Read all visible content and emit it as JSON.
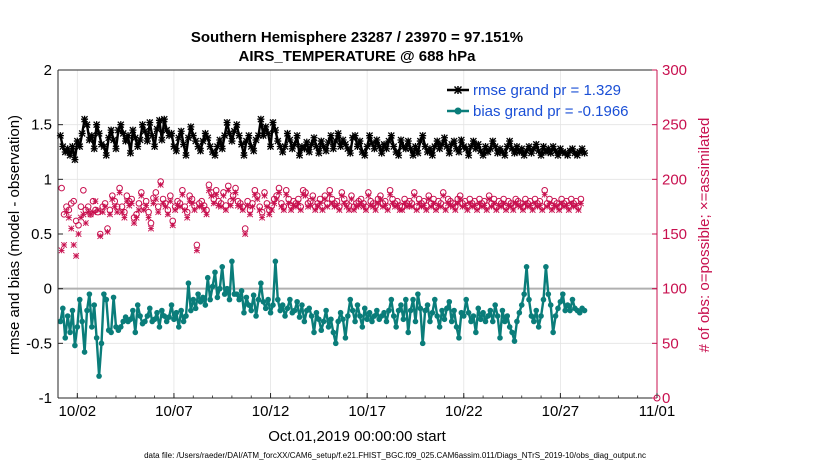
{
  "chart_data": {
    "type": "line",
    "title": "Southern Hemisphere 23287 / 23970 = 97.151%",
    "subtitle": "AIRS_TEMPERATURE @ 688 hPa",
    "xlabel": "Oct.01,2019 00:00:00 start",
    "ylabel_left": "rmse and bias (model - observation)",
    "ylabel_right": "# of obs: o=possible; ×=assimilated",
    "footer": "data file: /Users/raeder/DAI/ATM_forcXX/CAM6_setup/f.e21.FHIST_BGC.f09_025.CAM6assim.011/Diags_NTrS_2019-10/obs_diag_output.nc",
    "xlim": [
      0,
      31
    ],
    "x_ticks": [
      1,
      6,
      11,
      16,
      21,
      26,
      31
    ],
    "x_tick_labels": [
      "10/02",
      "10/07",
      "10/12",
      "10/17",
      "10/22",
      "10/27",
      "11/01"
    ],
    "ylim_left": [
      -1,
      2
    ],
    "y_ticks_left": [
      -1,
      -0.5,
      0,
      0.5,
      1,
      1.5,
      2
    ],
    "y_tick_labels_left": [
      "-1",
      "-0.5",
      "0",
      "0.5",
      "1",
      "1.5",
      "2"
    ],
    "ylim_right": [
      0,
      300
    ],
    "y_ticks_right": [
      0,
      50,
      100,
      150,
      200,
      250,
      300
    ],
    "y_tick_labels_right": [
      "0",
      "50",
      "100",
      "150",
      "200",
      "250",
      "300"
    ],
    "legend_position": "top-right",
    "colors": {
      "rmse": "#000000",
      "bias": "#0a7d7a",
      "obs": "#c8104f",
      "legend_text": "#1a4fd6",
      "zero_line": "#b0b0b0"
    },
    "series": [
      {
        "name": "rmse grand pr = 1.329",
        "key": "rmse",
        "values": [
          1.4,
          1.3,
          1.25,
          1.28,
          1.22,
          1.3,
          1.18,
          1.35,
          1.3,
          1.42,
          1.55,
          1.5,
          1.36,
          1.4,
          1.28,
          1.5,
          1.42,
          1.32,
          1.3,
          1.22,
          1.38,
          1.45,
          1.36,
          1.28,
          1.45,
          1.5,
          1.42,
          1.35,
          1.4,
          1.24,
          1.45,
          1.38,
          1.3,
          1.36,
          1.5,
          1.44,
          1.35,
          1.52,
          1.4,
          1.3,
          1.46,
          1.54,
          1.36,
          1.55,
          1.45,
          1.4,
          1.42,
          1.3,
          1.26,
          1.38,
          1.44,
          1.32,
          1.22,
          1.38,
          1.48,
          1.4,
          1.35,
          1.3,
          1.26,
          1.35,
          1.42,
          1.38,
          1.3,
          1.25,
          1.22,
          1.3,
          1.36,
          1.28,
          1.4,
          1.52,
          1.42,
          1.35,
          1.44,
          1.5,
          1.4,
          1.32,
          1.22,
          1.35,
          1.4,
          1.3,
          1.26,
          1.36,
          1.4,
          1.55,
          1.4,
          1.48,
          1.42,
          1.3,
          1.52,
          1.45,
          1.35,
          1.3,
          1.25,
          1.3,
          1.42,
          1.36,
          1.28,
          1.32,
          1.4,
          1.22,
          1.3,
          1.28,
          1.34,
          1.25,
          1.32,
          1.38,
          1.3,
          1.24,
          1.35,
          1.3,
          1.26,
          1.34,
          1.4,
          1.28,
          1.35,
          1.42,
          1.3,
          1.36,
          1.32,
          1.28,
          1.24,
          1.38,
          1.4,
          1.3,
          1.35,
          1.25,
          1.22,
          1.3,
          1.4,
          1.33,
          1.28,
          1.36,
          1.3,
          1.24,
          1.32,
          1.28,
          1.35,
          1.4,
          1.3,
          1.25,
          1.22,
          1.36,
          1.3,
          1.28,
          1.35,
          1.28,
          1.22,
          1.3,
          1.24,
          1.35,
          1.4,
          1.3,
          1.25,
          1.28,
          1.22,
          1.3,
          1.35,
          1.28,
          1.32,
          1.38,
          1.3,
          1.24,
          1.32,
          1.35,
          1.28,
          1.25,
          1.36,
          1.3,
          1.28,
          1.22,
          1.3,
          1.35,
          1.28,
          1.32,
          1.26,
          1.22,
          1.3,
          1.25,
          1.28,
          1.35,
          1.3,
          1.24,
          1.28,
          1.25,
          1.22,
          1.3,
          1.35,
          1.28,
          1.24,
          1.3,
          1.25,
          1.28,
          1.22,
          1.26,
          1.3,
          1.24,
          1.28,
          1.32,
          1.26,
          1.22,
          1.3,
          1.25,
          1.28,
          1.24,
          1.3,
          1.26,
          1.22,
          1.28,
          1.25,
          1.24,
          1.22,
          1.26,
          1.28,
          1.24,
          1.22,
          1.25,
          1.28,
          1.24
        ]
      },
      {
        "name": "bias grand pr = -0.1966",
        "key": "bias",
        "values": [
          -0.3,
          -0.18,
          -0.45,
          -0.25,
          -0.4,
          -0.2,
          -0.52,
          -0.35,
          -0.1,
          -0.3,
          -0.58,
          -0.2,
          -0.05,
          -0.35,
          -0.15,
          -0.45,
          -0.8,
          -0.5,
          -0.05,
          -0.1,
          -0.38,
          -0.4,
          -0.08,
          -0.35,
          -0.38,
          -0.35,
          -0.3,
          -0.26,
          -0.3,
          -0.28,
          -0.2,
          -0.4,
          -0.15,
          -0.25,
          -0.32,
          -0.3,
          -0.25,
          -0.18,
          -0.3,
          -0.28,
          -0.22,
          -0.35,
          -0.2,
          -0.25,
          -0.3,
          -0.26,
          -0.15,
          -0.28,
          -0.22,
          -0.35,
          -0.2,
          -0.3,
          -0.25,
          0.05,
          -0.2,
          -0.1,
          -0.18,
          -0.05,
          -0.12,
          -0.08,
          -0.15,
          0.1,
          -0.1,
          0.02,
          0.15,
          -0.08,
          0.0,
          0.2,
          -0.05,
          0.0,
          -0.1,
          0.25,
          -0.05,
          -0.05,
          -0.1,
          -0.02,
          -0.22,
          -0.08,
          -0.15,
          -0.2,
          -0.06,
          -0.25,
          -0.1,
          0.05,
          -0.12,
          -0.18,
          -0.1,
          -0.22,
          -0.15,
          0.25,
          -0.1,
          -0.2,
          -0.15,
          -0.25,
          -0.18,
          -0.1,
          -0.22,
          -0.2,
          -0.12,
          -0.26,
          -0.15,
          -0.3,
          -0.2,
          -0.18,
          -0.25,
          -0.4,
          -0.22,
          -0.28,
          -0.38,
          -0.3,
          -0.2,
          -0.35,
          -0.28,
          -0.4,
          -0.5,
          -0.3,
          -0.22,
          -0.28,
          -0.45,
          -0.25,
          -0.1,
          -0.2,
          -0.3,
          -0.15,
          -0.25,
          -0.35,
          -0.18,
          -0.28,
          -0.22,
          -0.3,
          -0.25,
          -0.2,
          -0.28,
          -0.25,
          -0.22,
          -0.3,
          -0.2,
          -0.1,
          -0.25,
          -0.35,
          -0.2,
          -0.15,
          -0.28,
          -0.1,
          -0.4,
          -0.2,
          -0.1,
          -0.3,
          -0.05,
          -0.18,
          -0.5,
          -0.2,
          -0.15,
          -0.3,
          -0.22,
          -0.1,
          -0.25,
          -0.35,
          -0.2,
          -0.28,
          -0.18,
          -0.12,
          -0.3,
          -0.2,
          -0.35,
          -0.45,
          -0.22,
          -0.25,
          -0.1,
          -0.22,
          -0.3,
          -0.25,
          -0.4,
          -0.18,
          -0.28,
          -0.22,
          -0.3,
          -0.25,
          -0.2,
          -0.3,
          -0.15,
          -0.25,
          -0.45,
          -0.2,
          -0.3,
          -0.25,
          -0.35,
          -0.4,
          -0.48,
          -0.3,
          -0.22,
          -0.15,
          -0.05,
          0.2,
          -0.1,
          -0.25,
          -0.3,
          -0.2,
          -0.35,
          -0.25,
          -0.1,
          0.2,
          -0.05,
          -0.15,
          -0.4,
          -0.25,
          -0.18,
          -0.12,
          -0.05,
          -0.2,
          -0.15,
          -0.2,
          -0.1,
          -0.18,
          -0.2,
          -0.22,
          -0.18,
          -0.2
        ]
      },
      {
        "name": "possible",
        "key": "possible",
        "marker": "o",
        "values": [
          192,
          168,
          175,
          172,
          178,
          180,
          162,
          158,
          175,
          190,
          172,
          175,
          168,
          180,
          172,
          170,
          150,
          175,
          178,
          155,
          172,
          185,
          180,
          175,
          192,
          175,
          170,
          185,
          180,
          182,
          165,
          168,
          178,
          188,
          175,
          180,
          170,
          160,
          183,
          188,
          175,
          198,
          182,
          178,
          172,
          185,
          162,
          175,
          180,
          178,
          190,
          175,
          170,
          185,
          182,
          176,
          140,
          178,
          180,
          176,
          172,
          195,
          188,
          182,
          190,
          180,
          178,
          188,
          176,
          194,
          180,
          185,
          192,
          180,
          178,
          175,
          155,
          180,
          172,
          178,
          190,
          185,
          175,
          170,
          188,
          178,
          172,
          176,
          182,
          185,
          192,
          178,
          175,
          190,
          182,
          176,
          180,
          178,
          182,
          175,
          190,
          188,
          178,
          180,
          185,
          175,
          178,
          182,
          176,
          185,
          178,
          190,
          182,
          178,
          180,
          175,
          188,
          182,
          178,
          176,
          185,
          175,
          178,
          180,
          182,
          178,
          175,
          188,
          180,
          178,
          176,
          182,
          185,
          178,
          180,
          175,
          190,
          182,
          178,
          180,
          176,
          175,
          182,
          178,
          180,
          178,
          188,
          175,
          182,
          178,
          180,
          176,
          185,
          178,
          182,
          175,
          180,
          178,
          188,
          176,
          182,
          180,
          178,
          175,
          182,
          185,
          178,
          180,
          176,
          182,
          178,
          180,
          175,
          182,
          178,
          180,
          176,
          185,
          178,
          182,
          175,
          180,
          178,
          182,
          175,
          180,
          178,
          176,
          182,
          180,
          178,
          175,
          182,
          178,
          180,
          176,
          182,
          178,
          180,
          175,
          190,
          178,
          182,
          176,
          180,
          178,
          175,
          182,
          178,
          180,
          176,
          182,
          178,
          180,
          175,
          182
        ]
      },
      {
        "name": "assimilated",
        "key": "assimilated",
        "marker": "×",
        "values": [
          135,
          140,
          170,
          165,
          155,
          140,
          130,
          150,
          165,
          168,
          160,
          170,
          168,
          170,
          180,
          172,
          148,
          170,
          175,
          152,
          168,
          182,
          175,
          170,
          188,
          170,
          165,
          180,
          176,
          178,
          160,
          165,
          172,
          185,
          172,
          176,
          165,
          155,
          178,
          182,
          170,
          195,
          178,
          175,
          168,
          180,
          158,
          172,
          176,
          175,
          186,
          172,
          165,
          180,
          178,
          172,
          135,
          175,
          176,
          172,
          168,
          190,
          185,
          178,
          186,
          176,
          175,
          185,
          172,
          190,
          176,
          182,
          188,
          176,
          175,
          172,
          150,
          176,
          168,
          175,
          186,
          182,
          172,
          165,
          185,
          175,
          168,
          172,
          178,
          182,
          188,
          175,
          172,
          186,
          178,
          172,
          176,
          175,
          178,
          172,
          186,
          185,
          175,
          176,
          182,
          172,
          175,
          178,
          172,
          182,
          175,
          186,
          178,
          175,
          176,
          172,
          185,
          178,
          175,
          172,
          182,
          172,
          175,
          176,
          178,
          175,
          172,
          185,
          176,
          175,
          172,
          178,
          182,
          175,
          176,
          172,
          186,
          178,
          175,
          176,
          172,
          172,
          178,
          175,
          176,
          175,
          185,
          172,
          178,
          175,
          176,
          172,
          182,
          175,
          178,
          172,
          176,
          175,
          185,
          172,
          178,
          176,
          175,
          172,
          178,
          182,
          175,
          176,
          172,
          178,
          175,
          176,
          172,
          178,
          175,
          176,
          172,
          182,
          175,
          178,
          172,
          176,
          175,
          178,
          172,
          176,
          175,
          172,
          178,
          176,
          175,
          172,
          178,
          175,
          176,
          172,
          178,
          175,
          176,
          172,
          186,
          175,
          178,
          172,
          176,
          175,
          172,
          178,
          175,
          176,
          172,
          178,
          175,
          176,
          172,
          178
        ]
      }
    ],
    "step_days": 0.125,
    "start_day": 0.125
  }
}
